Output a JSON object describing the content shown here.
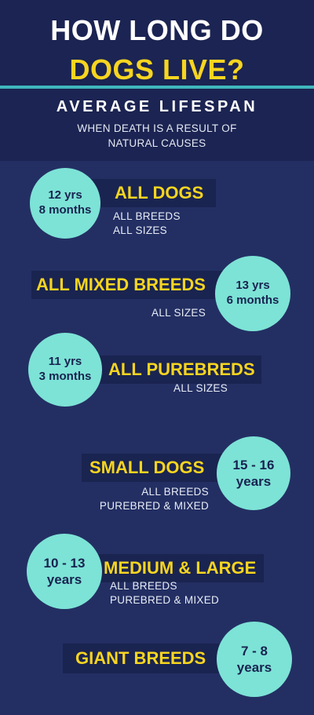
{
  "header": {
    "title_line1": "HOW LONG DO",
    "title_line2": "DOGS LIVE?",
    "subtitle": "AVERAGE LIFESPAN",
    "description_line1": "WHEN DEATH IS A RESULT OF",
    "description_line2": "NATURAL CAUSES"
  },
  "groups": [
    {
      "label": "ALL DOGS",
      "lifespan": [
        "12 yrs",
        "8 months"
      ],
      "details": [
        "ALL BREEDS",
        "ALL SIZES"
      ]
    },
    {
      "label": "ALL MIXED BREEDS",
      "lifespan": [
        "13 yrs",
        "6 months"
      ],
      "details": [
        "ALL SIZES"
      ]
    },
    {
      "label": "ALL PUREBREDS",
      "lifespan": [
        "11 yrs",
        "3 months"
      ],
      "details": [
        "ALL SIZES"
      ]
    },
    {
      "label": "SMALL DOGS",
      "lifespan": [
        "15 - 16",
        "years"
      ],
      "details": [
        "ALL BREEDS",
        "PUREBRED & MIXED"
      ]
    },
    {
      "label": "MEDIUM & LARGE",
      "lifespan": [
        "10 - 13",
        "years"
      ],
      "details": [
        "ALL BREEDS",
        "PUREBRED & MIXED"
      ]
    },
    {
      "label": "GIANT BREEDS",
      "lifespan": [
        "7 - 8",
        "years"
      ],
      "details": []
    }
  ],
  "colors": {
    "background": "#232f63",
    "header_background": "#1b2452",
    "circle": "#7de3d6",
    "accent_yellow": "#f7d51f",
    "divider": "#3fb7bd"
  }
}
